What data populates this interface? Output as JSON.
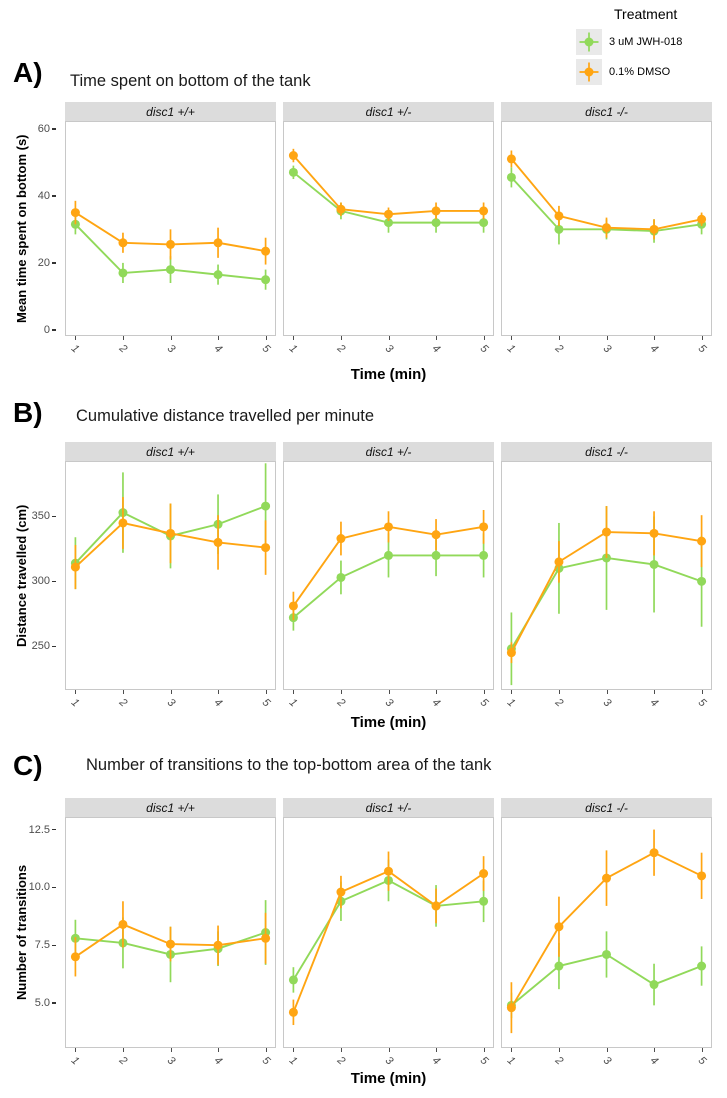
{
  "legend": {
    "title": "Treatment",
    "items": [
      {
        "label": "3 uM JWH-018",
        "color": "#91D95A"
      },
      {
        "label": "0.1% DMSO",
        "color": "#FFA512"
      }
    ]
  },
  "chart_data": [
    {
      "panel_label": "A)",
      "type": "line",
      "title": "Time spent on bottom of the tank",
      "ylabel": "Mean time spent on bottom (s)",
      "xlabel": "Time (min)",
      "x": [
        "1",
        "2",
        "3",
        "4",
        "5"
      ],
      "ylim": [
        -1.5,
        62
      ],
      "yticks": [
        {
          "value": 0,
          "label": "0"
        },
        {
          "value": 20,
          "label": "20"
        },
        {
          "value": 40,
          "label": "40"
        },
        {
          "value": 60,
          "label": "60"
        }
      ],
      "grid": false,
      "facets": [
        {
          "label": "disc1 +/+",
          "series": [
            {
              "name": "3 uM JWH-018",
              "color": "#91D95A",
              "values": [
                31.5,
                17,
                18,
                16.5,
                15
              ],
              "errors": [
                3,
                3,
                4,
                3,
                3
              ]
            },
            {
              "name": "0.1% DMSO",
              "color": "#FFA512",
              "values": [
                35,
                26,
                25.5,
                26,
                23.5
              ],
              "errors": [
                3.5,
                3,
                4.5,
                4.5,
                4
              ]
            }
          ]
        },
        {
          "label": "disc1 +/-",
          "series": [
            {
              "name": "3 uM JWH-018",
              "color": "#91D95A",
              "values": [
                47,
                35.5,
                32,
                32,
                32
              ],
              "errors": [
                2,
                2.5,
                3,
                3,
                3
              ]
            },
            {
              "name": "0.1% DMSO",
              "color": "#FFA512",
              "values": [
                52,
                36,
                34.5,
                35.5,
                35.5
              ],
              "errors": [
                2,
                2,
                2,
                2.5,
                2.5
              ]
            }
          ]
        },
        {
          "label": "disc1 -/-",
          "series": [
            {
              "name": "3 uM JWH-018",
              "color": "#91D95A",
              "values": [
                45.5,
                30,
                30,
                29.5,
                31.5
              ],
              "errors": [
                3,
                4.5,
                3,
                3.5,
                3
              ]
            },
            {
              "name": "0.1% DMSO",
              "color": "#FFA512",
              "values": [
                51,
                34,
                30.5,
                30,
                33
              ],
              "errors": [
                2.5,
                3,
                3,
                3,
                2
              ]
            }
          ]
        }
      ]
    },
    {
      "panel_label": "B)",
      "type": "line",
      "title": "Cumulative distance travelled per minute",
      "ylabel": "Distance travelled (cm)",
      "xlabel": "Time (min)",
      "x": [
        "1",
        "2",
        "3",
        "4",
        "5"
      ],
      "ylim": [
        217,
        392
      ],
      "yticks": [
        {
          "value": 250,
          "label": "250"
        },
        {
          "value": 300,
          "label": "300"
        },
        {
          "value": 350,
          "label": "350"
        }
      ],
      "grid": false,
      "facets": [
        {
          "label": "disc1 +/+",
          "series": [
            {
              "name": "3 uM JWH-018",
              "color": "#91D95A",
              "values": [
                314,
                353,
                335,
                344,
                358
              ],
              "errors": [
                20,
                31,
                25,
                23,
                33
              ]
            },
            {
              "name": "0.1% DMSO",
              "color": "#FFA512",
              "values": [
                311,
                345,
                337,
                330,
                326
              ],
              "errors": [
                17,
                20,
                23,
                21,
                21
              ]
            }
          ]
        },
        {
          "label": "disc1 +/-",
          "series": [
            {
              "name": "3 uM JWH-018",
              "color": "#91D95A",
              "values": [
                272,
                303,
                320,
                320,
                320
              ],
              "errors": [
                10,
                13,
                17,
                16,
                17
              ]
            },
            {
              "name": "0.1% DMSO",
              "color": "#FFA512",
              "values": [
                281,
                333,
                342,
                336,
                342
              ],
              "errors": [
                11,
                13,
                12,
                12,
                13
              ]
            }
          ]
        },
        {
          "label": "disc1 -/-",
          "series": [
            {
              "name": "3 uM JWH-018",
              "color": "#91D95A",
              "values": [
                248,
                310,
                318,
                313,
                300
              ],
              "errors": [
                28,
                35,
                40,
                37,
                35
              ]
            },
            {
              "name": "0.1% DMSO",
              "color": "#FFA512",
              "values": [
                245,
                315,
                338,
                337,
                331
              ],
              "errors": [
                8,
                16,
                20,
                17,
                20
              ]
            }
          ]
        }
      ]
    },
    {
      "panel_label": "C)",
      "type": "line",
      "title": "Number of transitions to the top-bottom area of the tank",
      "ylabel": "Number of transitions",
      "xlabel": "Time (min)",
      "x": [
        "1",
        "2",
        "3",
        "4",
        "5"
      ],
      "ylim": [
        3.1,
        13
      ],
      "yticks": [
        {
          "value": 5,
          "label": "5.0"
        },
        {
          "value": 7.5,
          "label": "7.5"
        },
        {
          "value": 10,
          "label": "10.0"
        },
        {
          "value": 12.5,
          "label": "12.5"
        }
      ],
      "grid": false,
      "facets": [
        {
          "label": "disc1 +/+",
          "series": [
            {
              "name": "3 uM JWH-018",
              "color": "#91D95A",
              "values": [
                7.8,
                7.6,
                7.1,
                7.35,
                8.05
              ],
              "errors": [
                0.8,
                1.1,
                1.2,
                0.75,
                1.4
              ]
            },
            {
              "name": "0.1% DMSO",
              "color": "#FFA512",
              "values": [
                7.0,
                8.4,
                7.55,
                7.5,
                7.8
              ],
              "errors": [
                0.85,
                1.0,
                0.75,
                0.85,
                1.1
              ]
            }
          ]
        },
        {
          "label": "disc1 +/-",
          "series": [
            {
              "name": "3 uM JWH-018",
              "color": "#91D95A",
              "values": [
                6.0,
                9.4,
                10.3,
                9.2,
                9.4
              ],
              "errors": [
                0.55,
                0.85,
                0.9,
                0.9,
                0.9
              ]
            },
            {
              "name": "0.1% DMSO",
              "color": "#FFA512",
              "values": [
                4.6,
                9.8,
                10.7,
                9.2,
                10.6
              ],
              "errors": [
                0.55,
                0.7,
                0.85,
                0.75,
                0.75
              ]
            }
          ]
        },
        {
          "label": "disc1 -/-",
          "series": [
            {
              "name": "3 uM JWH-018",
              "color": "#91D95A",
              "values": [
                4.9,
                6.6,
                7.1,
                5.8,
                6.6
              ],
              "errors": [
                0.55,
                1.0,
                1.0,
                0.9,
                0.85
              ]
            },
            {
              "name": "0.1% DMSO",
              "color": "#FFA512",
              "values": [
                4.8,
                8.3,
                10.4,
                11.5,
                10.5
              ],
              "errors": [
                1.1,
                1.3,
                1.2,
                1.0,
                1.0
              ]
            }
          ]
        }
      ]
    }
  ]
}
